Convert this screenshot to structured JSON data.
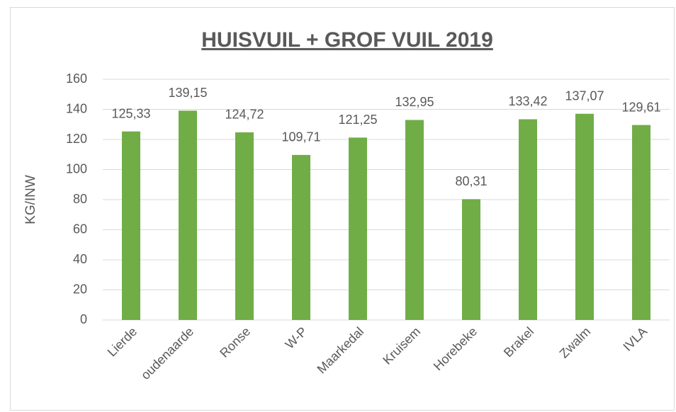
{
  "chart_data": {
    "type": "bar",
    "title": "HUISVUIL + GROF VUIL 2019",
    "y_label": "KG/INW",
    "categories": [
      "Lierde",
      "oudenaarde",
      "Ronse",
      "W-P",
      "Maarkedal",
      "Kruisem",
      "Horebeke",
      "Brakel",
      "Zwalm",
      "IVLA"
    ],
    "values": [
      125.33,
      139.15,
      124.72,
      109.71,
      121.25,
      132.95,
      80.31,
      133.42,
      137.07,
      129.61
    ],
    "value_labels": [
      "125,33",
      "139,15",
      "124,72",
      "109,71",
      "121,25",
      "132,95",
      "80,31",
      "133,42",
      "137,07",
      "129,61"
    ],
    "color": "#70ad47",
    "ylim": [
      0,
      160
    ],
    "yticks": [
      0,
      20,
      40,
      60,
      80,
      100,
      120,
      140,
      160
    ],
    "grid": true
  }
}
